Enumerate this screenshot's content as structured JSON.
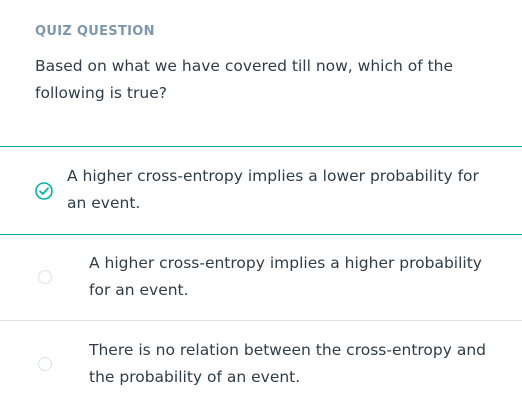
{
  "quiz": {
    "label": "QUIZ QUESTION",
    "question": "Based on what we have covered till now, which of the following is true?"
  },
  "options": [
    {
      "text": "A higher cross-entropy implies a lower probability for an event.",
      "selected": true,
      "icon": "check-circle-icon"
    },
    {
      "text": "A higher cross-entropy implies a higher probability for an event.",
      "selected": false,
      "icon": "radio-icon"
    },
    {
      "text": "There is no relation between the cross-entropy and the probability of an event.",
      "selected": false,
      "icon": "radio-icon"
    }
  ],
  "colors": {
    "accent": "#02b3a0",
    "label": "#7d97ad",
    "text": "#2e3d49",
    "divider": "#dbe2e8"
  }
}
